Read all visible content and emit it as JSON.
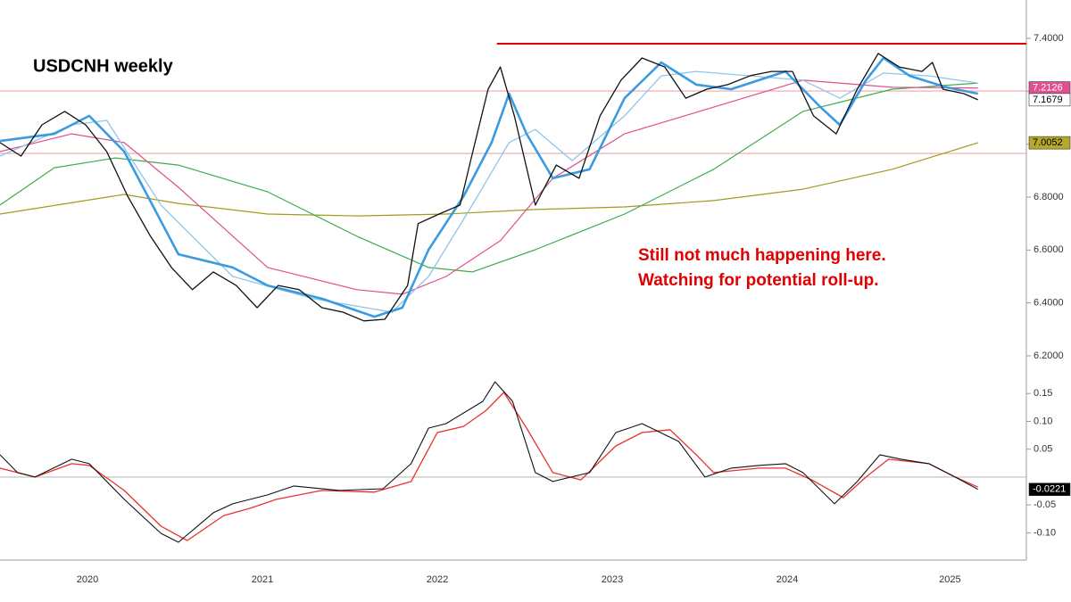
{
  "chart_data": [
    {
      "type": "line",
      "title": "USDCNH weekly",
      "annotations": [
        "Still not much happening here.",
        "Watching for potential roll-up."
      ],
      "xlim": [
        2020.0,
        2025.867
      ],
      "ylim": [
        6.146,
        7.545
      ],
      "yticks": [
        {
          "value": 6.2,
          "label": "6.2000"
        },
        {
          "value": 6.4,
          "label": "6.4000"
        },
        {
          "value": 6.6,
          "label": "6.6000"
        },
        {
          "value": 6.8,
          "label": "6.8000"
        },
        {
          "value": 7.0,
          "label": "7.0000"
        },
        {
          "value": 7.2,
          "label": "7.2000"
        },
        {
          "value": 7.4,
          "label": "7.4000"
        }
      ],
      "levels": [
        {
          "value": 7.38,
          "start": 2022.84,
          "color": "#e00000"
        },
        {
          "value": 7.201,
          "color": "#f6a3a3"
        },
        {
          "value": 6.965,
          "color": "#f6a3a3"
        }
      ],
      "series": [
        {
          "color": "#a39a1e",
          "width": 1.2,
          "badge": {
            "bg": "#b5a82a",
            "fg": "#000000"
          },
          "x": [
            2020.0,
            2020.71,
            2021.02,
            2021.53,
            2022.04,
            2022.55,
            2023.06,
            2023.57,
            2024.08,
            2024.59,
            2025.1,
            2025.59
          ],
          "values": [
            6.736,
            6.81,
            6.776,
            6.736,
            6.729,
            6.736,
            6.753,
            6.763,
            6.787,
            6.83,
            6.905,
            7.0052
          ]
        },
        {
          "color": "#3cae4a",
          "width": 1.2,
          "x": [
            2020.0,
            2020.31,
            2020.66,
            2021.02,
            2021.53,
            2022.04,
            2022.45,
            2022.7,
            2023.06,
            2023.57,
            2024.08,
            2024.59,
            2025.1,
            2025.59
          ],
          "values": [
            6.77,
            6.911,
            6.948,
            6.921,
            6.82,
            6.652,
            6.534,
            6.517,
            6.601,
            6.736,
            6.905,
            7.124,
            7.208,
            7.231
          ]
        },
        {
          "color": "#e0508f",
          "width": 1.2,
          "badge": {
            "bg": "#e0508f",
            "fg": "#ffffff"
          },
          "x": [
            2020.0,
            2020.41,
            2020.71,
            2021.02,
            2021.53,
            2022.04,
            2022.3,
            2022.55,
            2022.86,
            2023.16,
            2023.57,
            2024.08,
            2024.59,
            2025.1,
            2025.59
          ],
          "values": [
            6.972,
            7.039,
            7.006,
            6.837,
            6.534,
            6.45,
            6.433,
            6.5,
            6.635,
            6.871,
            7.039,
            7.14,
            7.242,
            7.215,
            7.2126
          ]
        },
        {
          "color": "#8ec6ea",
          "width": 1.3,
          "x": [
            2020.0,
            2020.41,
            2020.61,
            2020.92,
            2021.33,
            2021.79,
            2022.24,
            2022.45,
            2022.7,
            2022.91,
            2023.06,
            2023.27,
            2023.57,
            2023.78,
            2023.98,
            2024.29,
            2024.59,
            2024.8,
            2025.05,
            2025.31,
            2025.59
          ],
          "values": [
            6.955,
            7.073,
            7.09,
            6.77,
            6.5,
            6.416,
            6.365,
            6.5,
            6.77,
            7.006,
            7.056,
            6.938,
            7.107,
            7.258,
            7.275,
            7.258,
            7.242,
            7.174,
            7.269,
            7.258,
            7.231
          ]
        },
        {
          "color": "#3a9be0",
          "width": 2.6,
          "x": [
            2020.0,
            2020.31,
            2020.51,
            2020.71,
            2021.02,
            2021.33,
            2021.53,
            2021.84,
            2022.14,
            2022.3,
            2022.45,
            2022.65,
            2022.81,
            2022.91,
            2023.01,
            2023.16,
            2023.37,
            2023.57,
            2023.78,
            2023.98,
            2024.18,
            2024.49,
            2024.69,
            2024.8,
            2024.95,
            2025.05,
            2025.2,
            2025.41,
            2025.59
          ],
          "values": [
            7.012,
            7.039,
            7.107,
            6.972,
            6.584,
            6.534,
            6.466,
            6.416,
            6.348,
            6.382,
            6.601,
            6.803,
            7.006,
            7.191,
            7.039,
            6.871,
            6.905,
            7.174,
            7.309,
            7.225,
            7.208,
            7.275,
            7.14,
            7.073,
            7.242,
            7.326,
            7.258,
            7.215,
            7.191
          ]
        },
        {
          "color": "#111111",
          "width": 1.3,
          "badge": {
            "bg": "#ffffff",
            "fg": "#000000"
          },
          "x": [
            2020.0,
            2020.12,
            2020.24,
            2020.37,
            2020.49,
            2020.61,
            2020.73,
            2020.86,
            2020.98,
            2021.1,
            2021.22,
            2021.35,
            2021.47,
            2021.59,
            2021.71,
            2021.84,
            2021.96,
            2022.08,
            2022.2,
            2022.33,
            2022.39,
            2022.51,
            2022.63,
            2022.69,
            2022.79,
            2022.86,
            2022.94,
            2023.06,
            2023.18,
            2023.31,
            2023.43,
            2023.55,
            2023.67,
            2023.8,
            2023.92,
            2024.04,
            2024.16,
            2024.29,
            2024.41,
            2024.53,
            2024.65,
            2024.78,
            2024.9,
            2025.02,
            2025.14,
            2025.27,
            2025.33,
            2025.39,
            2025.51,
            2025.59
          ],
          "values": [
            7.006,
            6.955,
            7.073,
            7.124,
            7.073,
            6.972,
            6.803,
            6.652,
            6.534,
            6.45,
            6.517,
            6.466,
            6.382,
            6.466,
            6.45,
            6.382,
            6.365,
            6.332,
            6.338,
            6.466,
            6.7,
            6.736,
            6.77,
            6.938,
            7.208,
            7.292,
            7.107,
            6.77,
            6.921,
            6.871,
            7.107,
            7.242,
            7.326,
            7.292,
            7.174,
            7.208,
            7.225,
            7.259,
            7.275,
            7.275,
            7.107,
            7.039,
            7.208,
            7.343,
            7.292,
            7.275,
            7.309,
            7.208,
            7.191,
            7.1679
          ]
        }
      ]
    },
    {
      "type": "line",
      "xlim": [
        2020.0,
        2025.867
      ],
      "ylim": [
        -0.149,
        0.184
      ],
      "yticks": [
        {
          "value": -0.1,
          "label": "-0.10"
        },
        -0.05,
        {
          "value": 0.05,
          "label": "0.05"
        },
        {
          "value": 0.1,
          "label": "0.10"
        },
        0.15
      ],
      "xticks": [
        {
          "value": 2020.5,
          "label": "2020"
        },
        {
          "value": 2021.5,
          "label": "2021"
        },
        {
          "value": 2022.5,
          "label": "2022"
        },
        {
          "value": 2023.5,
          "label": "2023"
        },
        {
          "value": 2024.5,
          "label": "2024"
        },
        {
          "value": 2025.43,
          "label": "2025"
        }
      ],
      "levels": [
        {
          "value": 0,
          "color": "#bbbbbb"
        }
      ],
      "series": [
        {
          "color": "#e8322e",
          "width": 1.3,
          "x": [
            2020.0,
            2020.2,
            2020.41,
            2020.51,
            2020.71,
            2020.92,
            2021.07,
            2021.28,
            2021.43,
            2021.58,
            2021.84,
            2022.14,
            2022.35,
            2022.5,
            2022.65,
            2022.78,
            2022.88,
            2023.01,
            2023.16,
            2023.32,
            2023.52,
            2023.67,
            2023.83,
            2023.98,
            2024.08,
            2024.34,
            2024.49,
            2024.64,
            2024.82,
            2024.95,
            2025.08,
            2025.31,
            2025.46,
            2025.59
          ],
          "values": [
            0.016,
            0.0,
            0.024,
            0.021,
            -0.024,
            -0.088,
            -0.114,
            -0.069,
            -0.056,
            -0.04,
            -0.024,
            -0.027,
            -0.008,
            0.08,
            0.091,
            0.12,
            0.152,
            0.088,
            0.008,
            -0.005,
            0.056,
            0.08,
            0.085,
            0.04,
            0.008,
            0.016,
            0.016,
            -0.005,
            -0.037,
            0.0,
            0.032,
            0.024,
            0.0,
            -0.018
          ]
        },
        {
          "color": "#111111",
          "width": 1.1,
          "badge": {
            "bg": "#000000",
            "fg": "#ffffff"
          },
          "x": [
            2020.0,
            2020.1,
            2020.2,
            2020.41,
            2020.51,
            2020.71,
            2020.92,
            2021.02,
            2021.22,
            2021.33,
            2021.53,
            2021.68,
            2021.94,
            2022.19,
            2022.35,
            2022.45,
            2022.55,
            2022.76,
            2022.83,
            2022.93,
            2023.06,
            2023.16,
            2023.37,
            2023.52,
            2023.67,
            2023.88,
            2024.03,
            2024.18,
            2024.34,
            2024.49,
            2024.59,
            2024.77,
            2024.9,
            2025.03,
            2025.15,
            2025.31,
            2025.46,
            2025.59
          ],
          "values": [
            0.04,
            0.008,
            0.0,
            0.032,
            0.024,
            -0.04,
            -0.101,
            -0.117,
            -0.064,
            -0.048,
            -0.032,
            -0.016,
            -0.024,
            -0.021,
            0.024,
            0.088,
            0.096,
            0.136,
            0.171,
            0.136,
            0.008,
            -0.008,
            0.008,
            0.08,
            0.096,
            0.064,
            0.0,
            0.016,
            0.021,
            0.024,
            0.008,
            -0.048,
            -0.008,
            0.04,
            0.032,
            0.024,
            0.0,
            -0.0221
          ]
        }
      ]
    }
  ]
}
